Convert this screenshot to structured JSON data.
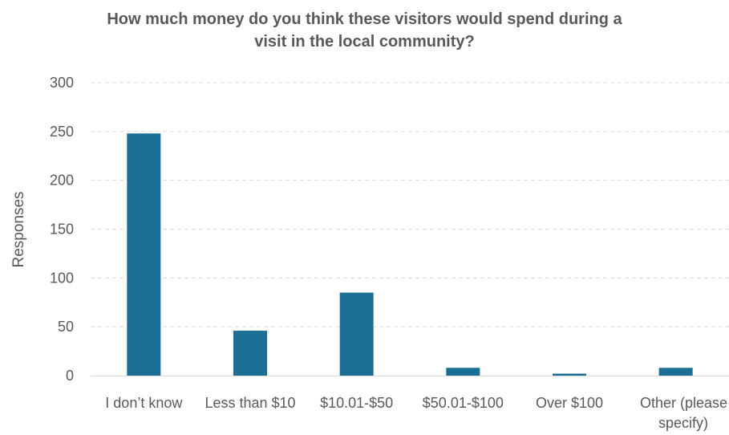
{
  "chart_data": {
    "type": "bar",
    "title_lines": [
      "How much money do you think these visitors would spend during a",
      "visit in the local community?"
    ],
    "xlabel": "",
    "ylabel": "Responses",
    "ylim": [
      0,
      300
    ],
    "yticks": [
      0,
      50,
      100,
      150,
      200,
      250,
      300
    ],
    "grid": true,
    "legend": "none",
    "categories": [
      [
        "I don’t know"
      ],
      [
        "Less than $10"
      ],
      [
        "$10.01-$50"
      ],
      [
        "$50.01-$100"
      ],
      [
        "Over $100"
      ],
      [
        "Other (please",
        "specify)"
      ]
    ],
    "values": [
      248,
      46,
      85,
      8,
      2,
      8
    ],
    "colors": {
      "bar": "#1B6F94",
      "grid": "#D9D9D9",
      "axis": "#D9D9D9",
      "text": "#595959"
    }
  }
}
